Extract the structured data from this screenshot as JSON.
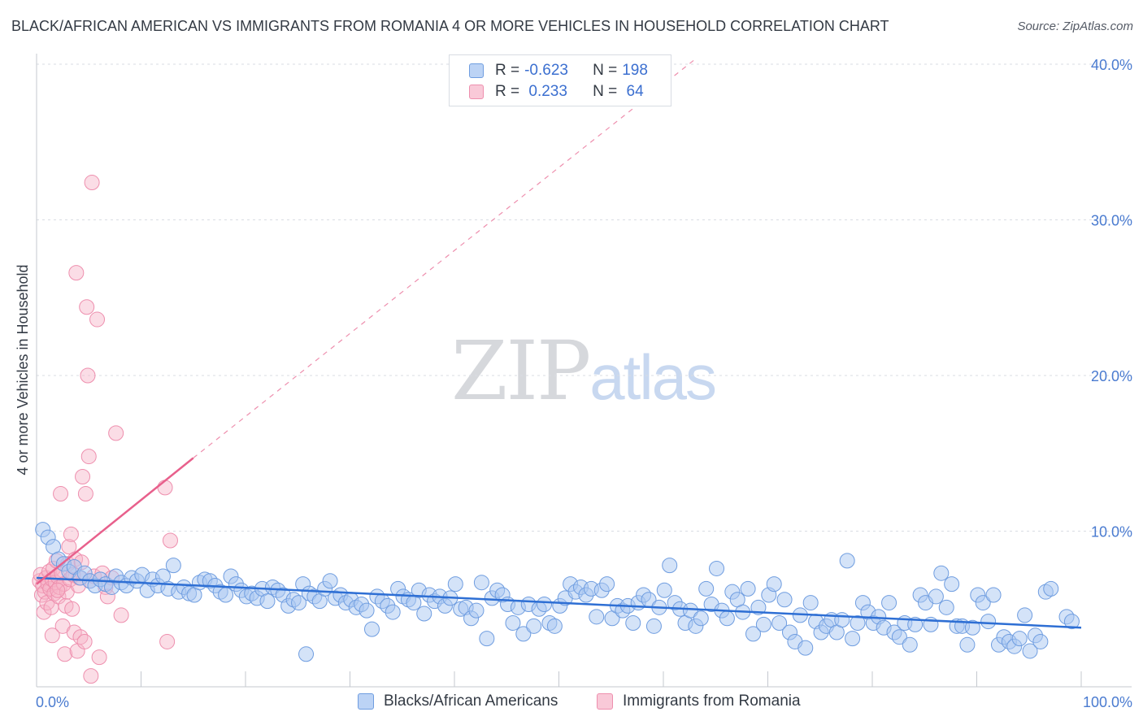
{
  "title": "BLACK/AFRICAN AMERICAN VS IMMIGRANTS FROM ROMANIA 4 OR MORE VEHICLES IN HOUSEHOLD CORRELATION CHART",
  "source": "Source: ZipAtlas.com",
  "watermark": {
    "zip": "ZIP",
    "atlas": "atlas"
  },
  "legend": {
    "rows": [
      {
        "r_label": "R = ",
        "r_value": "-0.623",
        "n_label": "N = ",
        "n_value": "198",
        "color": "#a9c7f2"
      },
      {
        "r_label": "R = ",
        "r_value": " 0.233",
        "n_label": "N = ",
        "n_value": " 64",
        "color": "#f6b3c8"
      }
    ]
  },
  "bottom_legend": {
    "blue_label": "Blacks/African Americans",
    "pink_label": "Immigrants from Romania"
  },
  "colors": {
    "blue_fill": "#a9c7f2",
    "blue_stroke": "#6f9de0",
    "blue_line": "#2e6fd4",
    "pink_fill": "#f6b3c8",
    "pink_stroke": "#ee8fae",
    "pink_line": "#e8608c",
    "grid": "#d9dde3",
    "axis_label": "#4a7bd0"
  },
  "chart_data": {
    "type": "scatter",
    "title": "BLACK/AFRICAN AMERICAN VS IMMIGRANTS FROM ROMANIA 4 OR MORE VEHICLES IN HOUSEHOLD CORRELATION CHART",
    "xlabel": "",
    "ylabel": "4 or more Vehicles in Household",
    "xlim": [
      0,
      100
    ],
    "ylim": [
      0,
      42
    ],
    "x_tick_labels": [
      "0.0%",
      "100.0%"
    ],
    "y_ticks": [
      10,
      20,
      30,
      40
    ],
    "y_tick_labels": [
      "10.0%",
      "20.0%",
      "30.0%",
      "40.0%"
    ],
    "series": [
      {
        "name": "Blacks/African Americans",
        "R": -0.623,
        "N": 198,
        "trend": {
          "x": [
            0,
            100
          ],
          "y": [
            7.0,
            3.8
          ]
        },
        "points": [
          [
            0.6,
            10.1
          ],
          [
            1.1,
            9.6
          ],
          [
            1.6,
            9.0
          ],
          [
            2.1,
            8.2
          ],
          [
            2.6,
            7.9
          ],
          [
            3.1,
            7.4
          ],
          [
            3.6,
            7.7
          ],
          [
            4.2,
            7.0
          ],
          [
            4.6,
            7.3
          ],
          [
            5.1,
            6.8
          ],
          [
            5.6,
            6.5
          ],
          [
            6.1,
            6.9
          ],
          [
            6.6,
            6.6
          ],
          [
            7.2,
            6.4
          ],
          [
            7.6,
            7.1
          ],
          [
            8.1,
            6.7
          ],
          [
            8.6,
            6.5
          ],
          [
            9.1,
            7.0
          ],
          [
            9.6,
            6.8
          ],
          [
            10.1,
            7.2
          ],
          [
            10.6,
            6.2
          ],
          [
            11.1,
            6.9
          ],
          [
            11.6,
            6.5
          ],
          [
            12.1,
            7.1
          ],
          [
            12.6,
            6.3
          ],
          [
            13.1,
            7.8
          ],
          [
            13.6,
            6.1
          ],
          [
            14.1,
            6.4
          ],
          [
            14.6,
            6.0
          ],
          [
            15.1,
            5.9
          ],
          [
            15.6,
            6.7
          ],
          [
            16.1,
            6.9
          ],
          [
            16.6,
            6.8
          ],
          [
            17.1,
            6.5
          ],
          [
            17.6,
            6.1
          ],
          [
            18.1,
            5.9
          ],
          [
            18.6,
            7.1
          ],
          [
            19.1,
            6.6
          ],
          [
            19.6,
            6.2
          ],
          [
            20.1,
            5.8
          ],
          [
            20.6,
            6.0
          ],
          [
            21.1,
            5.7
          ],
          [
            21.6,
            6.3
          ],
          [
            22.1,
            5.5
          ],
          [
            22.6,
            6.4
          ],
          [
            23.1,
            6.2
          ],
          [
            23.6,
            5.9
          ],
          [
            24.1,
            5.2
          ],
          [
            24.6,
            5.6
          ],
          [
            25.1,
            5.4
          ],
          [
            25.5,
            6.6
          ],
          [
            25.8,
            2.1
          ],
          [
            26.1,
            6.0
          ],
          [
            26.6,
            5.8
          ],
          [
            27.1,
            5.5
          ],
          [
            27.6,
            6.3
          ],
          [
            28.1,
            6.8
          ],
          [
            28.6,
            5.7
          ],
          [
            29.1,
            5.9
          ],
          [
            29.6,
            5.4
          ],
          [
            30.1,
            5.6
          ],
          [
            30.6,
            5.1
          ],
          [
            31.1,
            5.3
          ],
          [
            31.6,
            4.9
          ],
          [
            32.1,
            3.7
          ],
          [
            32.6,
            5.8
          ],
          [
            33.1,
            5.5
          ],
          [
            33.6,
            5.2
          ],
          [
            34.1,
            4.8
          ],
          [
            34.6,
            6.3
          ],
          [
            35.1,
            5.8
          ],
          [
            35.6,
            5.6
          ],
          [
            36.1,
            5.4
          ],
          [
            36.6,
            6.2
          ],
          [
            37.1,
            4.7
          ],
          [
            37.6,
            5.9
          ],
          [
            38.1,
            5.5
          ],
          [
            38.6,
            5.8
          ],
          [
            39.1,
            5.2
          ],
          [
            39.6,
            5.7
          ],
          [
            40.1,
            6.6
          ],
          [
            40.6,
            5.0
          ],
          [
            41.1,
            5.1
          ],
          [
            41.6,
            4.4
          ],
          [
            42.1,
            4.9
          ],
          [
            42.6,
            6.7
          ],
          [
            43.1,
            3.1
          ],
          [
            43.6,
            5.7
          ],
          [
            44.1,
            6.2
          ],
          [
            44.6,
            5.9
          ],
          [
            45.1,
            5.3
          ],
          [
            45.6,
            4.1
          ],
          [
            46.1,
            5.1
          ],
          [
            46.6,
            3.4
          ],
          [
            47.1,
            5.3
          ],
          [
            47.6,
            3.9
          ],
          [
            48.1,
            5.0
          ],
          [
            48.6,
            5.3
          ],
          [
            49.1,
            4.1
          ],
          [
            49.6,
            3.9
          ],
          [
            50.1,
            5.2
          ],
          [
            50.6,
            5.7
          ],
          [
            51.1,
            6.6
          ],
          [
            51.6,
            6.1
          ],
          [
            52.1,
            6.4
          ],
          [
            52.6,
            5.9
          ],
          [
            53.1,
            6.3
          ],
          [
            53.6,
            4.5
          ],
          [
            54.1,
            6.2
          ],
          [
            54.6,
            6.6
          ],
          [
            55.1,
            4.4
          ],
          [
            55.6,
            5.2
          ],
          [
            56.1,
            4.9
          ],
          [
            56.6,
            5.2
          ],
          [
            57.1,
            4.1
          ],
          [
            57.6,
            5.4
          ],
          [
            58.1,
            5.9
          ],
          [
            58.6,
            5.6
          ],
          [
            59.1,
            3.9
          ],
          [
            59.6,
            5.1
          ],
          [
            60.1,
            6.2
          ],
          [
            60.6,
            7.8
          ],
          [
            61.1,
            5.4
          ],
          [
            61.6,
            5.0
          ],
          [
            62.1,
            4.1
          ],
          [
            62.6,
            4.9
          ],
          [
            63.1,
            3.9
          ],
          [
            63.6,
            4.4
          ],
          [
            64.1,
            6.3
          ],
          [
            64.6,
            5.3
          ],
          [
            65.1,
            7.6
          ],
          [
            65.6,
            4.9
          ],
          [
            66.1,
            4.4
          ],
          [
            66.6,
            6.1
          ],
          [
            67.1,
            5.6
          ],
          [
            67.6,
            4.8
          ],
          [
            68.1,
            6.3
          ],
          [
            68.6,
            3.4
          ],
          [
            69.1,
            5.1
          ],
          [
            69.6,
            4.0
          ],
          [
            70.1,
            5.9
          ],
          [
            70.6,
            6.6
          ],
          [
            71.1,
            4.1
          ],
          [
            71.6,
            5.6
          ],
          [
            72.1,
            3.5
          ],
          [
            72.6,
            2.9
          ],
          [
            73.1,
            4.6
          ],
          [
            73.6,
            2.5
          ],
          [
            74.1,
            5.4
          ],
          [
            74.6,
            4.2
          ],
          [
            75.1,
            3.5
          ],
          [
            75.6,
            3.9
          ],
          [
            76.1,
            4.3
          ],
          [
            76.6,
            3.5
          ],
          [
            77.1,
            4.3
          ],
          [
            77.6,
            8.1
          ],
          [
            78.1,
            3.1
          ],
          [
            78.6,
            4.1
          ],
          [
            79.1,
            5.4
          ],
          [
            79.6,
            4.8
          ],
          [
            80.1,
            4.1
          ],
          [
            80.6,
            4.5
          ],
          [
            81.1,
            3.8
          ],
          [
            81.6,
            5.4
          ],
          [
            82.1,
            3.5
          ],
          [
            82.6,
            3.2
          ],
          [
            83.1,
            4.1
          ],
          [
            83.6,
            2.7
          ],
          [
            84.1,
            4.0
          ],
          [
            84.6,
            5.9
          ],
          [
            85.1,
            5.4
          ],
          [
            85.6,
            4.0
          ],
          [
            86.1,
            5.8
          ],
          [
            86.6,
            7.3
          ],
          [
            87.1,
            5.1
          ],
          [
            87.6,
            6.6
          ],
          [
            88.1,
            3.9
          ],
          [
            88.6,
            3.9
          ],
          [
            89.1,
            2.7
          ],
          [
            89.6,
            3.8
          ],
          [
            90.1,
            5.9
          ],
          [
            90.6,
            5.4
          ],
          [
            91.1,
            4.2
          ],
          [
            91.6,
            5.9
          ],
          [
            92.1,
            2.7
          ],
          [
            92.6,
            3.2
          ],
          [
            93.1,
            2.9
          ],
          [
            93.6,
            2.6
          ],
          [
            94.1,
            3.1
          ],
          [
            94.6,
            4.6
          ],
          [
            95.1,
            2.3
          ],
          [
            95.6,
            3.3
          ],
          [
            96.1,
            2.9
          ],
          [
            96.6,
            6.1
          ],
          [
            97.1,
            6.3
          ],
          [
            98.6,
            4.5
          ],
          [
            99.1,
            4.2
          ]
        ]
      },
      {
        "name": "Immigrants from Romania",
        "R": 0.233,
        "N": 64,
        "trend": {
          "x": [
            0,
            15
          ],
          "y": [
            6.6,
            14.7
          ],
          "extension": {
            "x": [
              15,
              63
            ],
            "y": [
              14.7,
              40.3
            ]
          }
        },
        "points": [
          [
            0.3,
            6.8
          ],
          [
            0.4,
            7.2
          ],
          [
            0.5,
            5.9
          ],
          [
            0.6,
            6.5
          ],
          [
            0.7,
            4.8
          ],
          [
            0.8,
            6.1
          ],
          [
            0.9,
            7.0
          ],
          [
            1.0,
            5.4
          ],
          [
            1.1,
            6.6
          ],
          [
            1.2,
            7.4
          ],
          [
            1.3,
            6.3
          ],
          [
            1.4,
            5.1
          ],
          [
            1.5,
            6.9
          ],
          [
            1.6,
            7.6
          ],
          [
            1.7,
            6.0
          ],
          [
            1.8,
            6.7
          ],
          [
            1.9,
            8.1
          ],
          [
            2.0,
            7.1
          ],
          [
            2.1,
            5.8
          ],
          [
            2.2,
            6.4
          ],
          [
            2.3,
            12.4
          ],
          [
            2.4,
            7.3
          ],
          [
            2.5,
            3.9
          ],
          [
            2.6,
            6.6
          ],
          [
            2.7,
            2.1
          ],
          [
            2.8,
            5.2
          ],
          [
            2.9,
            6.1
          ],
          [
            3.0,
            7.9
          ],
          [
            3.1,
            9.0
          ],
          [
            3.2,
            6.9
          ],
          [
            3.3,
            9.8
          ],
          [
            3.4,
            5.0
          ],
          [
            3.5,
            7.2
          ],
          [
            3.6,
            3.5
          ],
          [
            3.7,
            8.2
          ],
          [
            3.8,
            26.6
          ],
          [
            3.9,
            2.3
          ],
          [
            4.0,
            6.5
          ],
          [
            4.1,
            7.0
          ],
          [
            4.2,
            3.2
          ],
          [
            4.3,
            8.0
          ],
          [
            4.4,
            13.5
          ],
          [
            4.6,
            2.9
          ],
          [
            4.7,
            12.4
          ],
          [
            4.8,
            24.4
          ],
          [
            4.9,
            20.0
          ],
          [
            5.0,
            14.8
          ],
          [
            5.1,
            6.8
          ],
          [
            5.2,
            0.7
          ],
          [
            5.3,
            32.4
          ],
          [
            5.5,
            7.1
          ],
          [
            5.8,
            23.6
          ],
          [
            6.0,
            1.9
          ],
          [
            6.3,
            7.3
          ],
          [
            6.6,
            6.4
          ],
          [
            6.8,
            5.8
          ],
          [
            7.2,
            7.0
          ],
          [
            7.6,
            16.3
          ],
          [
            8.1,
            4.6
          ],
          [
            12.3,
            12.8
          ],
          [
            12.5,
            2.9
          ],
          [
            12.8,
            9.4
          ],
          [
            1.5,
            3.3
          ],
          [
            2.0,
            6.2
          ]
        ]
      }
    ]
  }
}
